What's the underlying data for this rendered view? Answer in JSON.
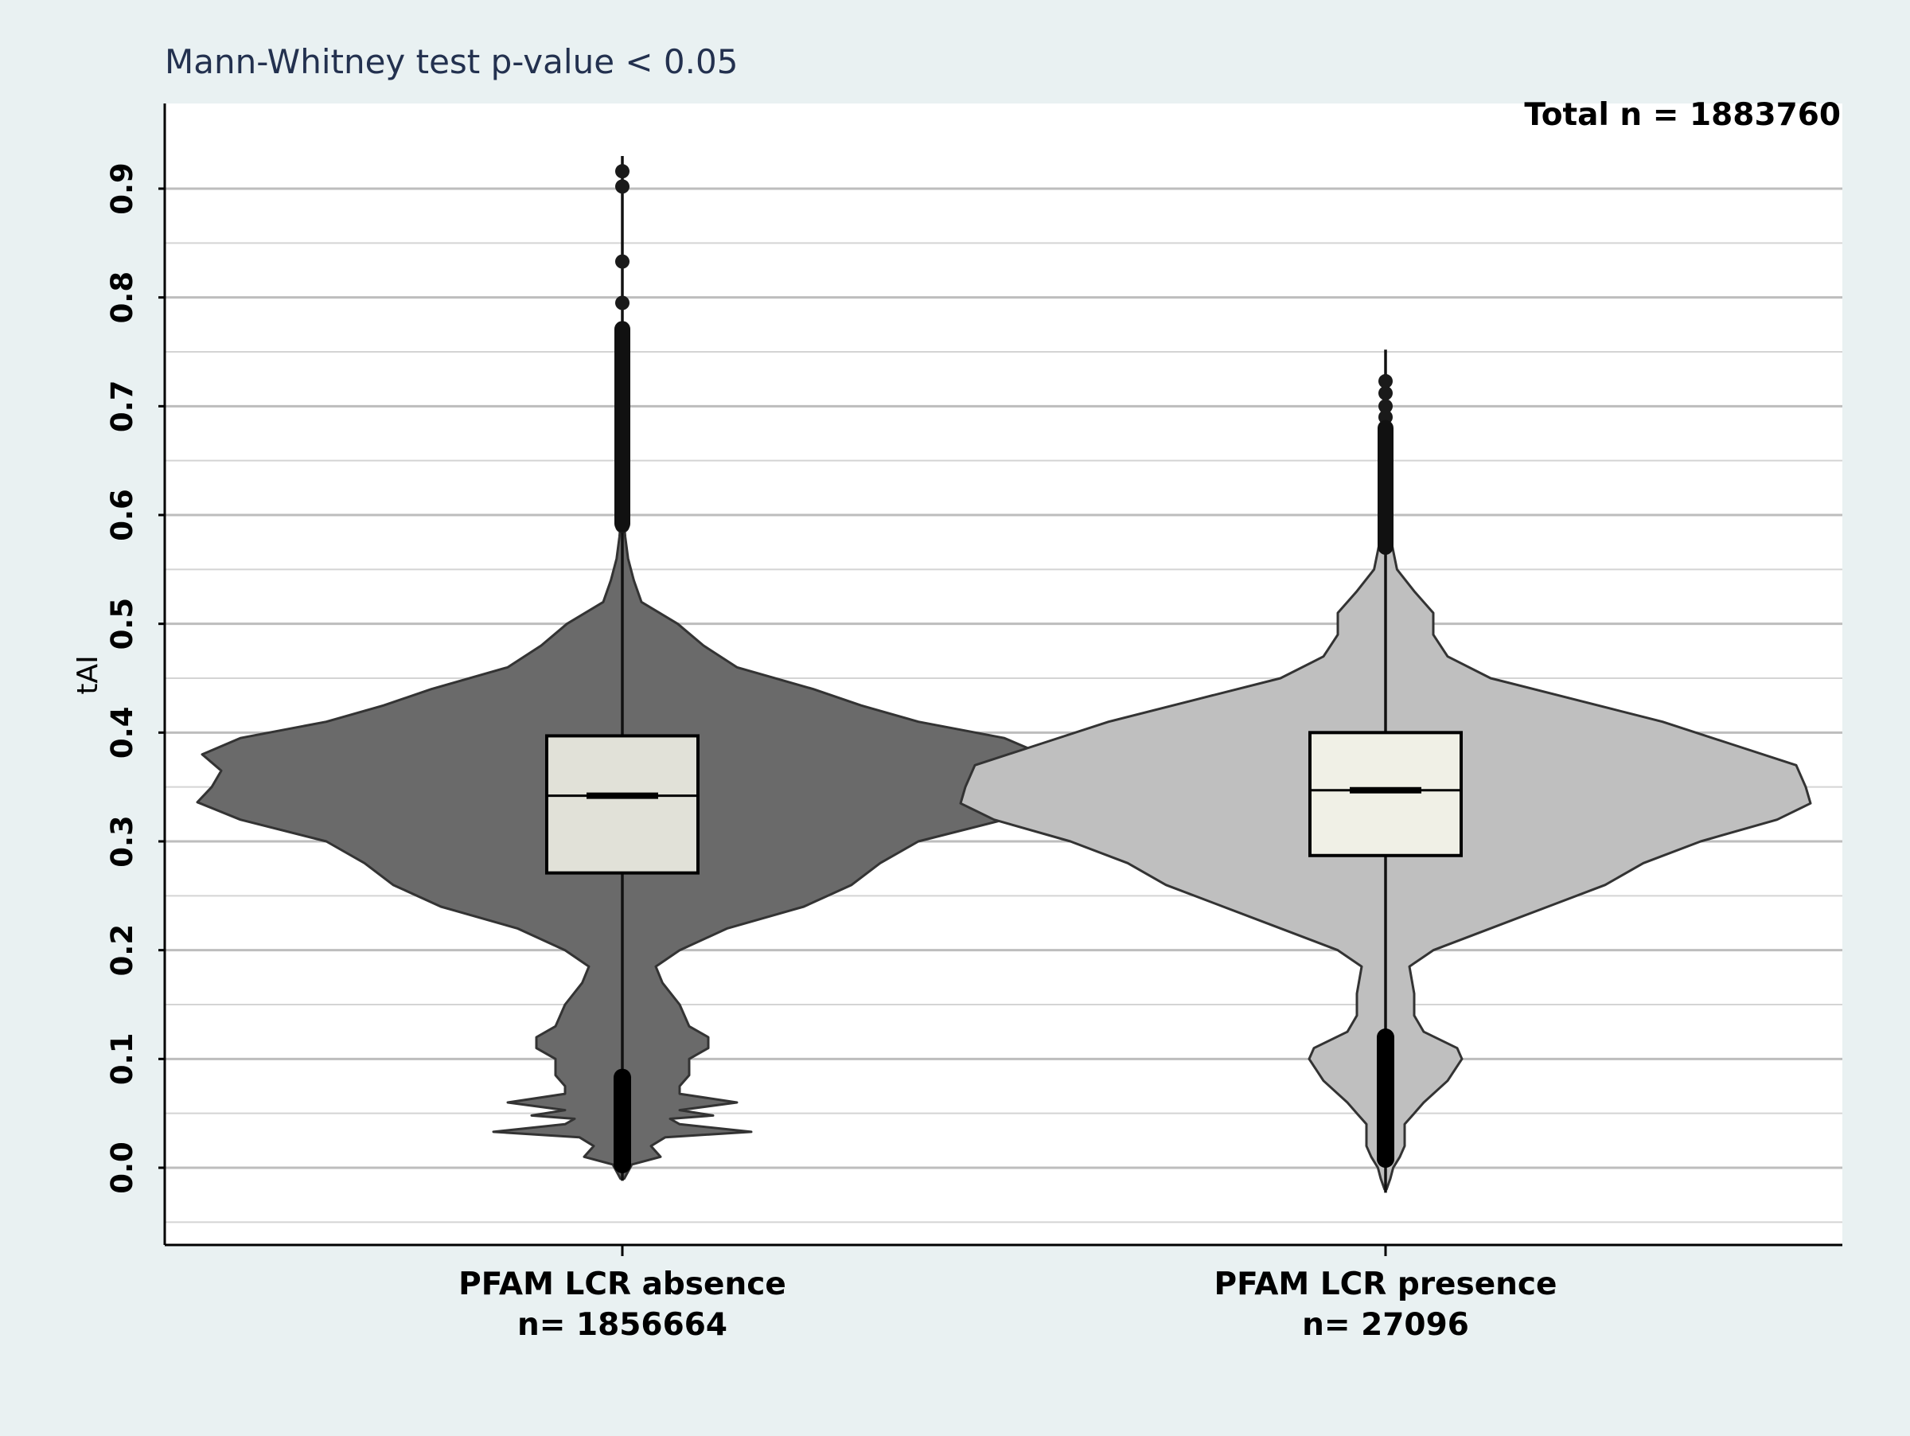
{
  "chart_data": {
    "type": "violin",
    "title": "Mann-Whitney test  p-value < 0.05",
    "total_label": "Total n = 1883760",
    "ylabel": "tAI",
    "xlabel": "",
    "ylim": [
      -0.07,
      0.975
    ],
    "y_ticks": [
      0.0,
      0.1,
      0.2,
      0.3,
      0.4,
      0.5,
      0.6,
      0.7,
      0.8,
      0.9
    ],
    "y_tick_labels": [
      "0.0",
      "0.1",
      "0.2",
      "0.3",
      "0.4",
      "0.5",
      "0.6",
      "0.7",
      "0.8",
      "0.9"
    ],
    "grid": true,
    "groups": [
      {
        "label": "PFAM LCR absence",
        "n_label": "n= 1856664",
        "fill": "#6a6a6a",
        "box_fill": "#e1e1d8",
        "box": {
          "q1": 0.271,
          "median": 0.342,
          "q3": 0.397
        },
        "whisker_high": 0.592,
        "whisker_low": 0.083,
        "line_top": 0.93,
        "line_bottom": -0.012,
        "outliers_high": [
          0.59,
          0.6,
          0.61,
          0.62,
          0.63,
          0.64,
          0.65,
          0.66,
          0.67,
          0.68,
          0.69,
          0.7,
          0.71,
          0.72,
          0.73,
          0.74,
          0.75,
          0.76,
          0.771,
          0.795,
          0.833,
          0.902,
          0.916
        ],
        "outliers_low": [
          0.003,
          0.01,
          0.017,
          0.024,
          0.031,
          0.038,
          0.045,
          0.052,
          0.059,
          0.066,
          0.073,
          0.08
        ],
        "density": [
          [
            -0.01,
            0.002
          ],
          [
            0.003,
            0.01
          ],
          [
            0.01,
            0.04
          ],
          [
            0.02,
            0.03
          ],
          [
            0.028,
            0.045
          ],
          [
            0.033,
            0.135
          ],
          [
            0.04,
            0.06
          ],
          [
            0.045,
            0.05
          ],
          [
            0.048,
            0.095
          ],
          [
            0.053,
            0.06
          ],
          [
            0.06,
            0.12
          ],
          [
            0.068,
            0.06
          ],
          [
            0.075,
            0.06
          ],
          [
            0.085,
            0.07
          ],
          [
            0.1,
            0.07
          ],
          [
            0.11,
            0.09
          ],
          [
            0.12,
            0.09
          ],
          [
            0.13,
            0.07
          ],
          [
            0.15,
            0.06
          ],
          [
            0.17,
            0.042
          ],
          [
            0.185,
            0.035
          ],
          [
            0.2,
            0.06
          ],
          [
            0.22,
            0.11
          ],
          [
            0.24,
            0.19
          ],
          [
            0.26,
            0.24
          ],
          [
            0.28,
            0.27
          ],
          [
            0.3,
            0.31
          ],
          [
            0.32,
            0.4
          ],
          [
            0.336,
            0.445
          ],
          [
            0.35,
            0.43
          ],
          [
            0.365,
            0.42
          ],
          [
            0.38,
            0.44
          ],
          [
            0.395,
            0.4
          ],
          [
            0.41,
            0.31
          ],
          [
            0.425,
            0.25
          ],
          [
            0.44,
            0.2
          ],
          [
            0.46,
            0.12
          ],
          [
            0.48,
            0.085
          ],
          [
            0.5,
            0.058
          ],
          [
            0.52,
            0.02
          ],
          [
            0.54,
            0.012
          ],
          [
            0.56,
            0.006
          ],
          [
            0.58,
            0.003
          ],
          [
            0.6,
            0.001
          ]
        ]
      },
      {
        "label": "PFAM LCR presence",
        "n_label": "n= 27096",
        "fill": "#bfbfbf",
        "box_fill": "#f0f0e6",
        "box": {
          "q1": 0.287,
          "median": 0.347,
          "q3": 0.4
        },
        "whisker_high": 0.571,
        "whisker_low": 0.12,
        "line_top": 0.752,
        "line_bottom": -0.023,
        "outliers_high": [
          0.57,
          0.58,
          0.59,
          0.6,
          0.61,
          0.62,
          0.63,
          0.64,
          0.65,
          0.66,
          0.67,
          0.68,
          0.69,
          0.7,
          0.712,
          0.723
        ],
        "outliers_low": [
          0.008,
          0.016,
          0.024,
          0.032,
          0.04,
          0.048,
          0.056,
          0.064,
          0.072,
          0.08,
          0.088,
          0.096,
          0.104,
          0.112,
          0.12
        ],
        "density": [
          [
            -0.02,
            0.001
          ],
          [
            -0.01,
            0.005
          ],
          [
            0.0,
            0.008
          ],
          [
            0.01,
            0.015
          ],
          [
            0.02,
            0.02
          ],
          [
            0.03,
            0.02
          ],
          [
            0.04,
            0.02
          ],
          [
            0.05,
            0.03
          ],
          [
            0.06,
            0.04
          ],
          [
            0.08,
            0.065
          ],
          [
            0.1,
            0.08
          ],
          [
            0.11,
            0.075
          ],
          [
            0.125,
            0.04
          ],
          [
            0.14,
            0.03
          ],
          [
            0.16,
            0.03
          ],
          [
            0.185,
            0.025
          ],
          [
            0.2,
            0.05
          ],
          [
            0.22,
            0.11
          ],
          [
            0.24,
            0.17
          ],
          [
            0.26,
            0.23
          ],
          [
            0.28,
            0.27
          ],
          [
            0.3,
            0.33
          ],
          [
            0.32,
            0.41
          ],
          [
            0.335,
            0.445
          ],
          [
            0.35,
            0.44
          ],
          [
            0.37,
            0.43
          ],
          [
            0.39,
            0.36
          ],
          [
            0.41,
            0.29
          ],
          [
            0.43,
            0.2
          ],
          [
            0.45,
            0.11
          ],
          [
            0.47,
            0.065
          ],
          [
            0.49,
            0.05
          ],
          [
            0.51,
            0.05
          ],
          [
            0.53,
            0.03
          ],
          [
            0.55,
            0.012
          ],
          [
            0.58,
            0.005
          ],
          [
            0.6,
            0.002
          ],
          [
            0.62,
            0.0005
          ]
        ]
      }
    ]
  }
}
